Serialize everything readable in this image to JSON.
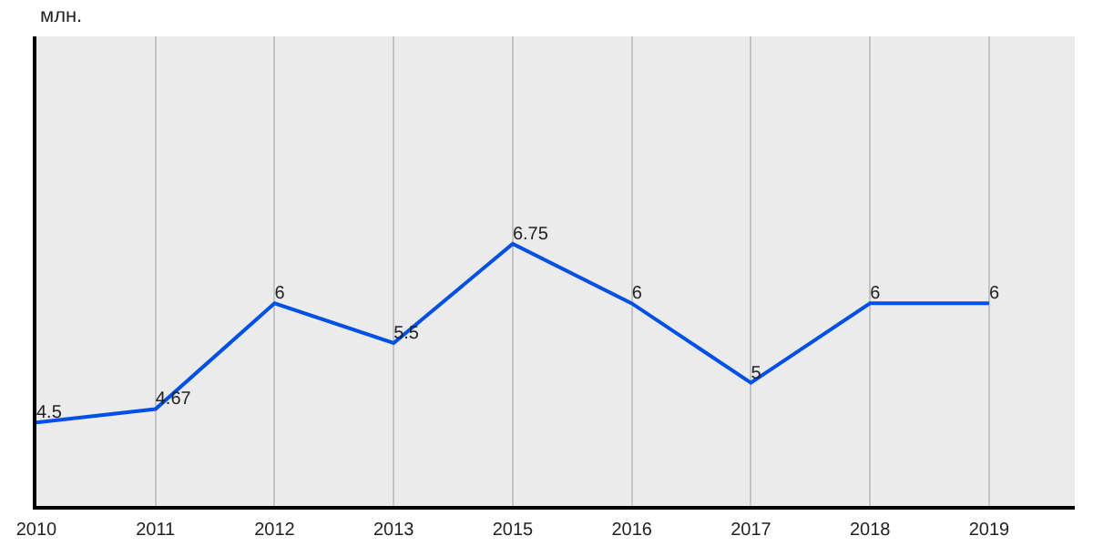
{
  "chart_data": {
    "type": "line",
    "ylabel": "млн.",
    "categories": [
      "2010",
      "2011",
      "2012",
      "2013",
      "2015",
      "2016",
      "2017",
      "2018",
      "2019"
    ],
    "series": [
      {
        "color": "#0050e6",
        "values": [
          4.5,
          4.67,
          6,
          5.5,
          6.75,
          6,
          5,
          6,
          6
        ]
      }
    ],
    "ylim": [
      3.45,
      9.36
    ],
    "grid": "x",
    "data_labels": true,
    "marker": "none",
    "line_style": "solid"
  }
}
